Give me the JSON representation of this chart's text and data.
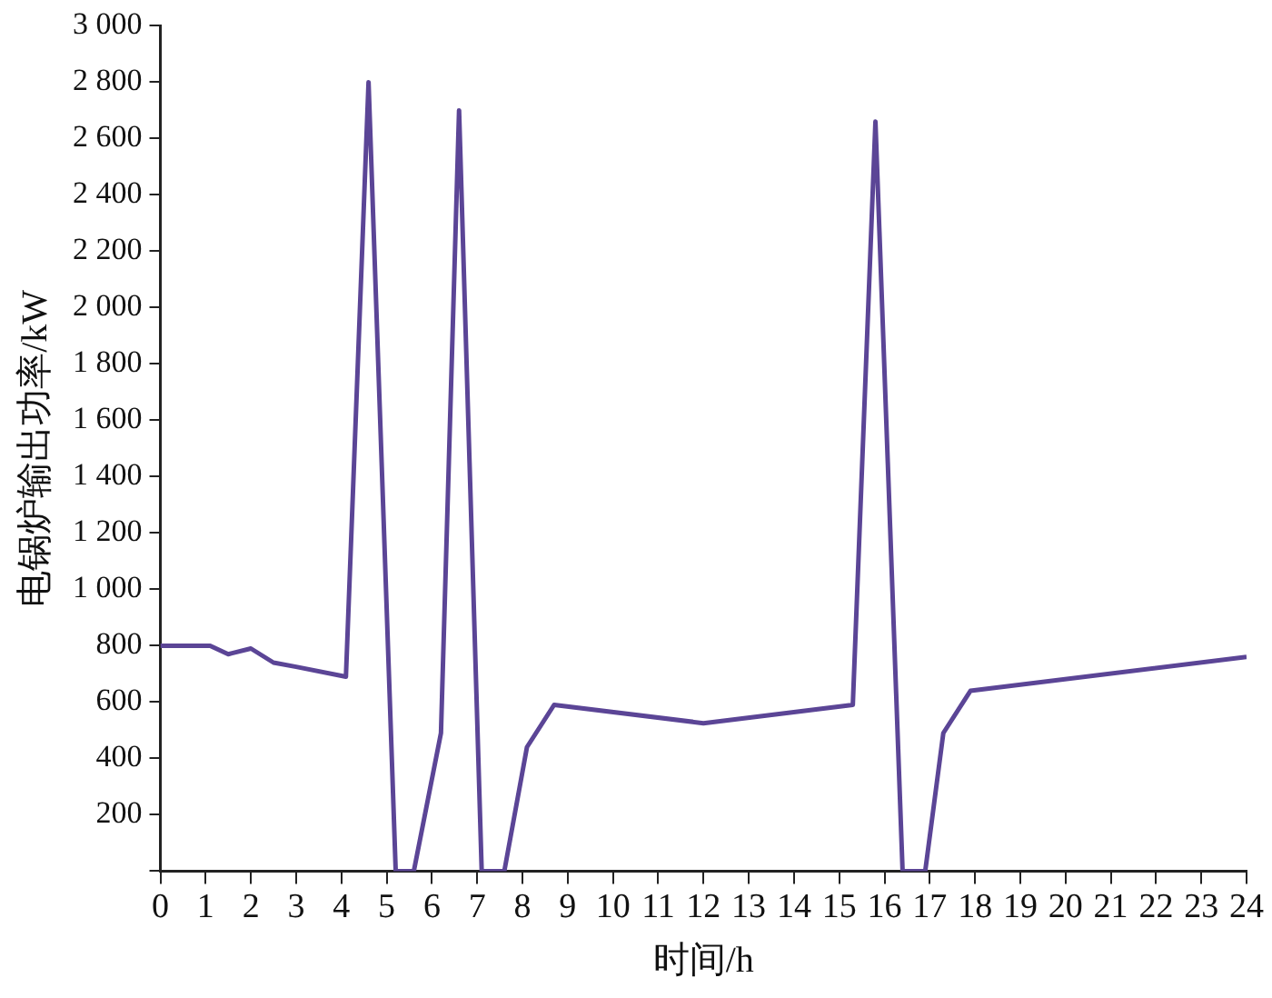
{
  "chart_data": {
    "type": "line",
    "xlabel": "时间/h",
    "ylabel": "电锅炉输出功率/kW",
    "series": [
      {
        "color": "#5b4596",
        "x": [
          0,
          1.1,
          1.5,
          2,
          2.5,
          3,
          4.1,
          4.6,
          5.2,
          5.6,
          6.2,
          6.6,
          7.1,
          7.6,
          8.1,
          8.7,
          12,
          15.3,
          15.8,
          16.4,
          16.9,
          17.3,
          17.9,
          24
        ],
        "values": [
          800,
          800,
          770,
          790,
          740,
          725,
          690,
          2800,
          0,
          0,
          490,
          2700,
          0,
          0,
          440,
          590,
          525,
          590,
          2660,
          0,
          0,
          490,
          640,
          760
        ]
      }
    ],
    "xlim": [
      0,
      24
    ],
    "xticks": [
      0,
      1,
      2,
      3,
      4,
      5,
      6,
      7,
      8,
      9,
      10,
      11,
      12,
      13,
      14,
      15,
      16,
      17,
      18,
      19,
      20,
      21,
      22,
      23,
      24
    ],
    "ylim": [
      0,
      3000
    ],
    "yticks": [
      {
        "value": 0,
        "label": null
      },
      {
        "value": 200,
        "label": "200"
      },
      {
        "value": 400,
        "label": "400"
      },
      {
        "value": 600,
        "label": "600"
      },
      {
        "value": 800,
        "label": "800"
      },
      {
        "value": 1000,
        "label": "1 000"
      },
      {
        "value": 1200,
        "label": "1 200"
      },
      {
        "value": 1400,
        "label": "1 400"
      },
      {
        "value": 1600,
        "label": "1 600"
      },
      {
        "value": 1800,
        "label": "1 800"
      },
      {
        "value": 2000,
        "label": "2 000"
      },
      {
        "value": 2200,
        "label": "2 200"
      },
      {
        "value": 2400,
        "label": "2 400"
      },
      {
        "value": 2600,
        "label": "2 600"
      },
      {
        "value": 2800,
        "label": "2 800"
      },
      {
        "value": 3000,
        "label": "3 000"
      }
    ],
    "grid": false,
    "legend": false,
    "marker": "none",
    "line_style": "solid"
  }
}
